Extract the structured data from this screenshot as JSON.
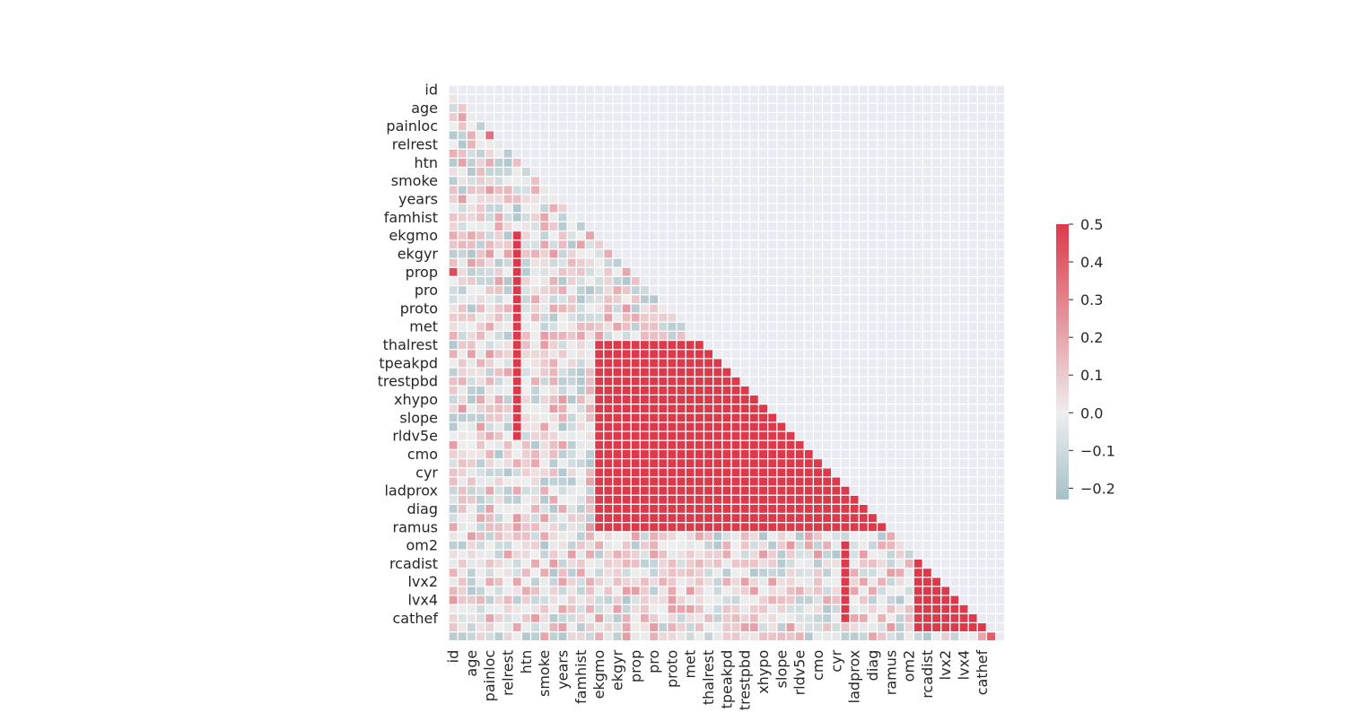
{
  "chart_data": {
    "type": "heatmap",
    "mask": "upper-triangle",
    "title": "",
    "xlabel": "",
    "ylabel": "",
    "tick_labels": [
      "id",
      "age",
      "painloc",
      "relrest",
      "htn",
      "smoke",
      "years",
      "famhist",
      "ekgmo",
      "ekgyr",
      "prop",
      "pro",
      "proto",
      "met",
      "thalrest",
      "tpeakpd",
      "trestpbd",
      "xhypo",
      "slope",
      "rldv5e",
      "cmo",
      "cyr",
      "ladprox",
      "diag",
      "ramus",
      "om2",
      "rcadist",
      "lvx2",
      "lvx4",
      "cathef"
    ],
    "colorbar": {
      "range": [
        -0.23,
        0.5
      ],
      "ticks": [
        0.5,
        0.4,
        0.3,
        0.2,
        0.1,
        0.0,
        -0.1,
        -0.2
      ],
      "tick_labels": [
        "0.5",
        "0.4",
        "0.3",
        "0.2",
        "0.1",
        "0.0",
        "−0.1",
        "−0.2"
      ],
      "color_low": "#a6c1c8",
      "color_mid": "#eeeeee",
      "color_high": "#dc3a4a"
    },
    "background_color": "#eaeaf2",
    "grid_color": "#ffffff"
  }
}
